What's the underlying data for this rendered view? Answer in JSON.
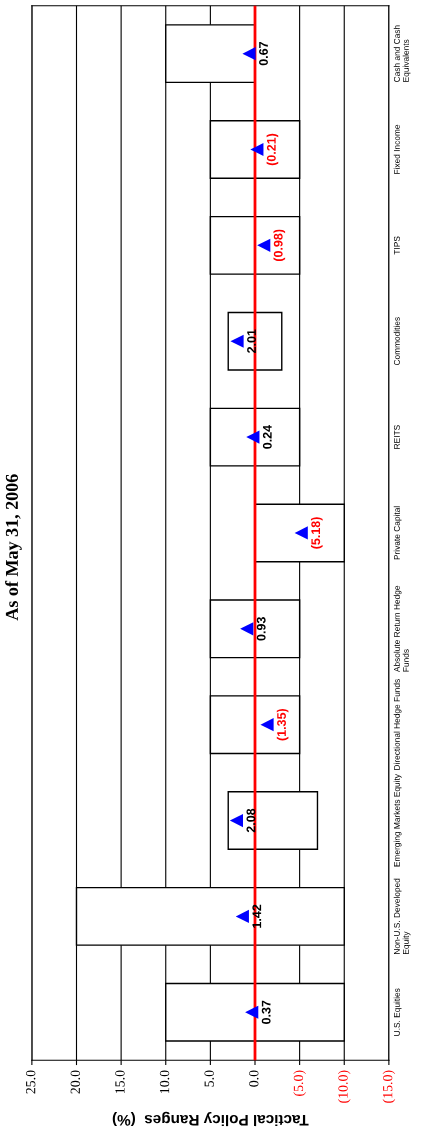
{
  "chart_data": {
    "type": "bar",
    "orientation": "horizontal",
    "title": "As of May 31, 2006",
    "xlabel": "Tactical Policy Ranges  (%)",
    "categories": [
      "Cash and Cash\nEquivalents",
      "Fixed Income",
      "TIPS",
      "Commodities",
      "REITS",
      "Private Capital",
      "Absolute Return Hedge\nFunds",
      "Directional Hedge Funds",
      "Emerging Markets Equity",
      "Non-U.S. Developed\nEquity",
      "U.S. Equities"
    ],
    "series": [
      {
        "color": "#ffffff",
        "base": [
          0,
          -5,
          -5,
          -3,
          -5,
          -10,
          -5,
          -5,
          -7,
          -10,
          -10
        ],
        "values": [
          10,
          10,
          10,
          6,
          10,
          10,
          10,
          10,
          10,
          30,
          20
        ]
      },
      {
        "type": "scatter",
        "color": "#0000ff",
        "marker": "triangle",
        "values": [
          0.67,
          -0.21,
          -0.98,
          2.01,
          0.24,
          -5.18,
          0.93,
          -1.35,
          2.08,
          1.42,
          0.37
        ],
        "value_labels": [
          "0.67",
          "(0.21)",
          "(0.98)",
          "2.01",
          "0.24",
          "(5.18)",
          "0.93",
          "(1.35)",
          "2.08",
          "1.42",
          "0.37"
        ]
      }
    ],
    "xlim": [
      25,
      -15
    ],
    "xticks": [
      {
        "value": 25,
        "label": "25.0"
      },
      {
        "value": 20,
        "label": "20.0"
      },
      {
        "value": 15,
        "label": "15.0"
      },
      {
        "value": 10,
        "label": "10.0"
      },
      {
        "value": 5,
        "label": "5.0"
      },
      {
        "value": 0,
        "label": "0.0"
      },
      {
        "value": -5,
        "label": "(5.0)"
      },
      {
        "value": -10,
        "label": "(10.0)"
      },
      {
        "value": -15,
        "label": "(15.0)"
      }
    ],
    "ref_lines": [
      {
        "axis": "x",
        "value": 0,
        "color": "#ff0000"
      }
    ],
    "grid": "x"
  }
}
